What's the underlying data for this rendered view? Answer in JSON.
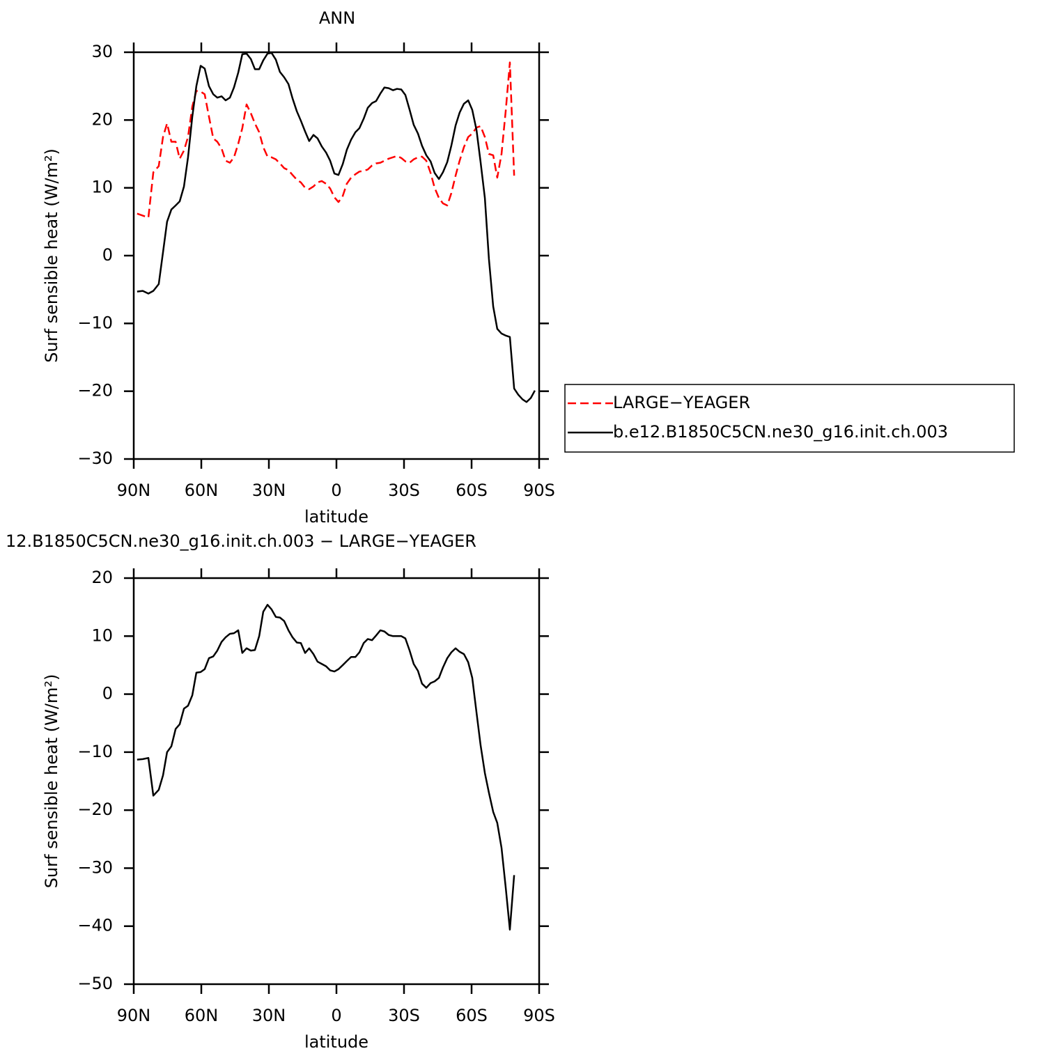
{
  "chart_data": [
    {
      "type": "line",
      "title": "ANN",
      "xlabel": "latitude",
      "ylabel": "Surf sensible heat (W/m²)",
      "x": [
        88.5,
        86.0,
        83.5,
        81.3,
        78.9,
        77.0,
        75.2,
        73.3,
        71.4,
        69.6,
        67.7,
        65.9,
        64.0,
        62.2,
        60.3,
        58.5,
        56.6,
        54.7,
        52.9,
        51.0,
        49.2,
        47.3,
        45.5,
        43.6,
        41.8,
        39.9,
        38.0,
        36.2,
        34.3,
        32.5,
        30.6,
        28.8,
        26.9,
        25.1,
        23.2,
        21.3,
        19.5,
        17.6,
        15.8,
        13.9,
        12.1,
        10.2,
        8.4,
        6.5,
        4.6,
        2.8,
        0.9,
        -0.9,
        -2.8,
        -4.6,
        -6.5,
        -8.4,
        -10.2,
        -12.1,
        -13.9,
        -15.8,
        -17.6,
        -19.5,
        -21.3,
        -23.2,
        -25.1,
        -26.9,
        -28.8,
        -30.6,
        -32.5,
        -34.3,
        -36.2,
        -38.0,
        -39.9,
        -41.8,
        -43.6,
        -45.5,
        -47.3,
        -49.2,
        -51.0,
        -52.9,
        -54.7,
        -56.6,
        -58.5,
        -60.3,
        -62.2,
        -64.0,
        -65.9,
        -67.7,
        -69.6,
        -71.4,
        -73.3,
        -75.2,
        -77.0,
        -78.9,
        -80.7,
        -82.6,
        -84.4,
        -86.3,
        -88.1
      ],
      "series": [
        {
          "name": "LARGE−YEAGER",
          "color": "#ff0000",
          "dash": "dashed",
          "values": [
            6.2,
            5.9,
            5.6,
            12.3,
            13.2,
            17.5,
            19.5,
            16.8,
            16.8,
            14.3,
            15.5,
            17.5,
            22,
            24.3,
            24.2,
            23.8,
            20.5,
            17.3,
            16.8,
            15.8,
            14,
            13.7,
            14.5,
            16.5,
            18.8,
            22.3,
            21,
            19.5,
            18.2,
            16,
            14.6,
            14.5,
            14.2,
            13.6,
            12.9,
            12.6,
            11.9,
            11.2,
            10.8,
            10,
            9.8,
            10.2,
            10.8,
            11,
            10.6,
            9.9,
            8.6,
            7.9,
            8.8,
            10.6,
            11.5,
            12,
            12.4,
            12.5,
            12.7,
            13.3,
            13.6,
            13.7,
            14,
            14.3,
            14.5,
            14.7,
            14.4,
            13.9,
            13.7,
            14.2,
            14.5,
            14.6,
            14,
            12.2,
            10,
            8.5,
            7.7,
            7.4,
            9.2,
            11.8,
            14,
            16,
            17.5,
            18,
            18.9,
            19.1,
            17.5,
            15,
            14.8,
            11.5,
            15,
            21.5,
            28.5,
            11.8,
            null,
            null,
            null,
            null,
            null
          ]
        },
        {
          "name": "b.e12.B1850C5CN.ne30_g16.init.ch.003",
          "color": "#000000",
          "dash": "solid",
          "values": [
            -5.3,
            -5.2,
            -5.6,
            -5.2,
            -4.2,
            0.5,
            5,
            6.8,
            7.4,
            8,
            10.2,
            14.5,
            20.5,
            25,
            28,
            27.6,
            25,
            23.8,
            23.3,
            23.5,
            22.9,
            23.3,
            24.8,
            27,
            29.7,
            29.8,
            29,
            27.5,
            27.5,
            28.8,
            29.8,
            29.9,
            28.9,
            27.1,
            26.3,
            25.3,
            23.2,
            21.3,
            19.9,
            18.3,
            16.9,
            17.8,
            17.3,
            16.1,
            15.2,
            14,
            12.1,
            11.9,
            13.5,
            15.6,
            17.1,
            18.2,
            18.8,
            20.2,
            21.8,
            22.5,
            22.8,
            23.9,
            24.8,
            24.7,
            24.4,
            24.6,
            24.5,
            23.7,
            21.5,
            19.3,
            18,
            16.2,
            14.8,
            13.9,
            12.2,
            11.3,
            12.3,
            13.8,
            16.2,
            19.2,
            21.1,
            22.4,
            22.9,
            21.5,
            18.5,
            13.8,
            8.5,
            -0.5,
            -7.5,
            -10.8,
            -11.5,
            -11.8,
            -12,
            -19.6,
            -20.5,
            -21.2,
            -21.6,
            -21,
            -19.9
          ]
        }
      ],
      "xlim": [
        90,
        -90
      ],
      "xticks": [
        {
          "value": 90,
          "label": "90N"
        },
        {
          "value": 60,
          "label": "60N"
        },
        {
          "value": 30,
          "label": "30N"
        },
        0,
        {
          "value": -30,
          "label": "30S"
        },
        {
          "value": -60,
          "label": "60S"
        },
        {
          "value": -90,
          "label": "90S"
        }
      ],
      "ylim": [
        -30,
        30
      ],
      "yticks": [
        {
          "value": -30,
          "label": "−30"
        },
        {
          "value": -20,
          "label": "−20"
        },
        {
          "value": -10,
          "label": "−10"
        },
        0,
        10,
        20,
        30
      ],
      "legend": "right"
    },
    {
      "type": "line",
      "title": "12.B1850C5CN.ne30_g16.init.ch.003 − LARGE−YEAGER",
      "xlabel": "latitude",
      "ylabel": "Surf sensible heat (W/m²)",
      "x": [
        88.5,
        86.0,
        83.5,
        81.3,
        78.9,
        77.0,
        75.2,
        73.3,
        71.4,
        69.6,
        67.7,
        65.9,
        64.0,
        62.2,
        60.3,
        58.5,
        56.6,
        54.7,
        52.9,
        51.0,
        49.2,
        47.3,
        45.5,
        43.6,
        41.8,
        39.9,
        38.0,
        36.2,
        34.3,
        32.5,
        30.6,
        28.8,
        26.9,
        25.1,
        23.2,
        21.3,
        19.5,
        17.6,
        15.8,
        13.9,
        12.1,
        10.2,
        8.4,
        6.5,
        4.6,
        2.8,
        0.9,
        -0.9,
        -2.8,
        -4.6,
        -6.5,
        -8.4,
        -10.2,
        -12.1,
        -13.9,
        -15.8,
        -17.6,
        -19.5,
        -21.3,
        -23.2,
        -25.1,
        -26.9,
        -28.8,
        -30.6,
        -32.5,
        -34.3,
        -36.2,
        -38.0,
        -39.9,
        -41.8,
        -43.6,
        -45.5,
        -47.3,
        -49.2,
        -51.0,
        -52.9,
        -54.7,
        -56.6,
        -58.5,
        -60.3,
        -62.2,
        -64.0,
        -65.9,
        -67.7,
        -69.6,
        -71.4,
        -73.3,
        -75.2,
        -77.0,
        -78.9
      ],
      "series": [
        {
          "color": "#000000",
          "dash": "solid",
          "values": [
            -11.3,
            -11.2,
            -11,
            -17.5,
            -16.5,
            -14,
            -10,
            -9,
            -6,
            -5.2,
            -2.5,
            -2,
            -0.2,
            3.7,
            3.8,
            4.3,
            6.2,
            6.5,
            7.5,
            9,
            9.8,
            10.4,
            10.5,
            11,
            7.1,
            7.9,
            7.5,
            7.6,
            10,
            14.2,
            15.4,
            14.6,
            13.3,
            13.2,
            12.6,
            11,
            9.8,
            8.9,
            8.8,
            7.1,
            7.9,
            6.9,
            5.6,
            5.2,
            4.8,
            4.1,
            3.9,
            4.3,
            5,
            5.7,
            6.4,
            6.4,
            7.2,
            8.8,
            9.5,
            9.3,
            10.1,
            11,
            10.8,
            10.2,
            10,
            10,
            10,
            9.6,
            7.5,
            5.2,
            4,
            1.8,
            1.1,
            1.9,
            2.2,
            2.8,
            4.6,
            6.2,
            7.2,
            7.9,
            7.3,
            6.9,
            5.5,
            2.8,
            -3.2,
            -8.8,
            -13.6,
            -17,
            -20.3,
            -22.2,
            -26.5,
            -33.5,
            -40.6,
            -31.2
          ]
        }
      ],
      "xlim": [
        90,
        -90
      ],
      "xticks": [
        {
          "value": 90,
          "label": "90N"
        },
        {
          "value": 60,
          "label": "60N"
        },
        {
          "value": 30,
          "label": "30N"
        },
        0,
        {
          "value": -30,
          "label": "30S"
        },
        {
          "value": -60,
          "label": "60S"
        },
        {
          "value": -90,
          "label": "90S"
        }
      ],
      "ylim": [
        -50,
        20
      ],
      "yticks": [
        {
          "value": -50,
          "label": "−50"
        },
        {
          "value": -40,
          "label": "−40"
        },
        {
          "value": -30,
          "label": "−30"
        },
        {
          "value": -20,
          "label": "−20"
        },
        {
          "value": -10,
          "label": "−10"
        },
        0,
        10,
        20
      ]
    }
  ]
}
